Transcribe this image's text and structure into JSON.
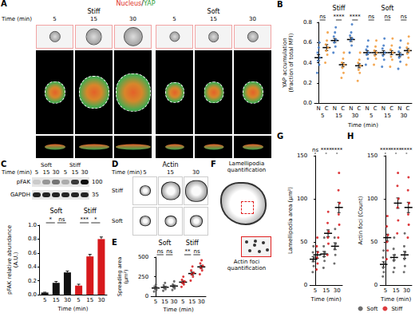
{
  "figure": {
    "A": {
      "title": "A",
      "header": [
        "Nucleus",
        "/",
        "YAP"
      ],
      "time_label": "Time (min)",
      "conditions": [
        {
          "name": "Stiff",
          "times": [
            "5",
            "15",
            "30"
          ]
        },
        {
          "name": "Soft",
          "times": [
            "5",
            "15",
            "30"
          ]
        }
      ]
    },
    "C_blot": {
      "time_label": "Time (min)",
      "conditions": [
        {
          "name": "Soft",
          "times": [
            "5",
            "15",
            "30"
          ]
        },
        {
          "name": "Stiff",
          "times": [
            "5",
            "15",
            "30"
          ]
        }
      ],
      "bands": [
        "pFAK",
        "GAPDH"
      ],
      "markers": [
        "100",
        "35"
      ]
    },
    "D": {
      "title": "D",
      "header": "Actin",
      "time_label": "Time (min)",
      "times": [
        "5",
        "15",
        "30"
      ],
      "rows": [
        "Stiff",
        "Soft"
      ]
    },
    "F": {
      "title": "F",
      "labels": [
        "Lamellipodia quantification",
        "Actin foci quantification"
      ]
    }
  },
  "chart_data": [
    {
      "title": "B",
      "type": "scatter",
      "ylabel": "YAP accumulation (fraction of total MFI)",
      "xlabel": "Time (min)",
      "categories": [
        "N",
        "C",
        "N",
        "C",
        "N",
        "C",
        "N",
        "C",
        "N",
        "C",
        "N",
        "C"
      ],
      "group_labels": [
        "5",
        "15",
        "30",
        "5",
        "15",
        "30"
      ],
      "conditions": [
        "Stiff",
        "Soft"
      ],
      "significance": [
        "ns",
        "****",
        "****",
        "ns",
        "ns",
        "ns"
      ],
      "ylim": [
        0,
        0.8
      ],
      "yticks": [
        {
          "value": 0,
          "label": "0.0"
        },
        0.2,
        0.4,
        0.6,
        0.8
      ],
      "grid": false,
      "series": [
        {
          "colors": [
            "#3b75c4",
            "#f29a38",
            "#3b75c4",
            "#f29a38",
            "#3b75c4",
            "#f29a38",
            "#3b75c4",
            "#f29a38",
            "#3b75c4",
            "#f29a38",
            "#3b75c4",
            "#f29a38"
          ],
          "values": [
            0.45,
            0.55,
            0.62,
            0.38,
            0.63,
            0.37,
            0.5,
            0.5,
            0.5,
            0.5,
            0.48,
            0.52
          ],
          "errors": [
            0.03,
            0.03,
            0.02,
            0.02,
            0.02,
            0.02,
            0.02,
            0.02,
            0.02,
            0.02,
            0.02,
            0.02
          ],
          "points": [
            [
              0.3,
              0.38,
              0.42,
              0.45,
              0.5,
              0.55,
              0.6
            ],
            [
              0.4,
              0.48,
              0.52,
              0.55,
              0.58,
              0.62,
              0.7
            ],
            [
              0.5,
              0.56,
              0.6,
              0.63,
              0.66,
              0.7,
              0.75
            ],
            [
              0.25,
              0.3,
              0.35,
              0.38,
              0.4,
              0.44,
              0.5
            ],
            [
              0.5,
              0.57,
              0.62,
              0.64,
              0.67,
              0.7,
              0.78
            ],
            [
              0.22,
              0.3,
              0.33,
              0.37,
              0.4,
              0.43,
              0.5
            ],
            [
              0.38,
              0.44,
              0.48,
              0.5,
              0.53,
              0.56,
              0.62
            ],
            [
              0.38,
              0.44,
              0.47,
              0.5,
              0.52,
              0.56,
              0.62
            ],
            [
              0.36,
              0.43,
              0.47,
              0.5,
              0.54,
              0.57,
              0.64
            ],
            [
              0.36,
              0.43,
              0.46,
              0.5,
              0.53,
              0.57,
              0.64
            ],
            [
              0.34,
              0.41,
              0.45,
              0.48,
              0.51,
              0.55,
              0.62
            ],
            [
              0.38,
              0.45,
              0.49,
              0.52,
              0.55,
              0.59,
              0.66
            ]
          ]
        }
      ]
    },
    {
      "title": "C",
      "type": "bar",
      "ylabel": "pFAK relative abundance (A.U.)",
      "xlabel": "Time (min)",
      "categories": [
        "5",
        "15",
        "30",
        "5",
        "15",
        "30"
      ],
      "conditions": [
        "Soft",
        "Stiff"
      ],
      "significance": [
        "*",
        "ns",
        "***",
        "*"
      ],
      "ylim": [
        0,
        1
      ],
      "yticks": [
        {
          "value": 0,
          "label": "0.0"
        },
        0.2,
        0.4,
        0.6,
        0.8,
        {
          "value": 1,
          "label": "1.0"
        }
      ],
      "grid": false,
      "series": [
        {
          "colors": [
            "#111111",
            "#111111",
            "#111111",
            "#d7191c",
            "#d7191c",
            "#d7191c"
          ],
          "values": [
            0.03,
            0.17,
            0.32,
            0.13,
            0.55,
            0.8
          ],
          "errors": [
            0.005,
            0.02,
            0.02,
            0.02,
            0.03,
            0.03
          ]
        }
      ]
    },
    {
      "title": "E",
      "type": "scatter",
      "ylabel": "Spreading area (µm²)",
      "xlabel": "Time (min)",
      "categories": [
        "5",
        "15",
        "30",
        "5",
        "15",
        "30"
      ],
      "conditions": [
        "Soft",
        "Stiff"
      ],
      "significance": [
        "ns",
        "ns",
        "**",
        "ns"
      ],
      "ylim": [
        0,
        500
      ],
      "yticks": [
        0,
        250,
        500
      ],
      "grid": false,
      "series": [
        {
          "colors": [
            "#555555",
            "#555555",
            "#555555",
            "#d7191c",
            "#d7191c",
            "#d7191c"
          ],
          "values": [
            105,
            115,
            130,
            180,
            290,
            375
          ],
          "errors": [
            10,
            10,
            12,
            15,
            18,
            20
          ],
          "points": [
            [
              60,
              80,
              95,
              110,
              125,
              150
            ],
            [
              70,
              90,
              105,
              120,
              140,
              170
            ],
            [
              80,
              100,
              115,
              130,
              150,
              190
            ],
            [
              120,
              150,
              170,
              190,
              210,
              250
            ],
            [
              200,
              250,
              280,
              300,
              330,
              380
            ],
            [
              280,
              330,
              360,
              390,
              420,
              460
            ]
          ]
        }
      ]
    },
    {
      "title": "G",
      "type": "scatter",
      "ylabel": "Lamellipodia area (µm²)",
      "xlabel": "Time (min)",
      "categories": [
        "5",
        "15",
        "30"
      ],
      "significance": [
        "ns",
        "****",
        "****"
      ],
      "ylim": [
        0,
        150
      ],
      "yticks": [
        0,
        50,
        100,
        150
      ],
      "grid": false,
      "series": [
        {
          "color": "#555555",
          "values": [
            30,
            36,
            45
          ],
          "errors": [
            3,
            3,
            4
          ],
          "points": [
            [
              15,
              22,
              28,
              32,
              38,
              45
            ],
            [
              20,
              28,
              33,
              38,
              45,
              55
            ],
            [
              25,
              35,
              42,
              48,
              55,
              65
            ]
          ]
        },
        {
          "color": "#d7191c",
          "values": [
            35,
            60,
            90
          ],
          "errors": [
            4,
            4,
            6
          ],
          "points": [
            [
              18,
              25,
              32,
              38,
              45,
              55
            ],
            [
              35,
              48,
              55,
              62,
              72,
              85
            ],
            [
              55,
              70,
              82,
              95,
              110,
              130
            ]
          ]
        }
      ]
    },
    {
      "title": "H",
      "type": "scatter",
      "ylabel": "Actin foci (Count)",
      "xlabel": "Time (min)",
      "categories": [
        "5",
        "15",
        "30"
      ],
      "significance": [
        "****",
        "****",
        "****"
      ],
      "ylim": [
        0,
        150
      ],
      "yticks": [
        0,
        50,
        100,
        150
      ],
      "grid": false,
      "legend": "bottom",
      "series": [
        {
          "name": "Soft",
          "color": "#555555",
          "values": [
            24,
            32,
            35
          ],
          "errors": [
            3,
            3,
            4
          ],
          "points": [
            [
              10,
              15,
              20,
              25,
              32,
              40
            ],
            [
              15,
              20,
              28,
              35,
              42,
              55
            ],
            [
              15,
              22,
              30,
              38,
              45,
              60
            ]
          ]
        },
        {
          "name": "Stiff",
          "color": "#d7191c",
          "values": [
            55,
            95,
            90
          ],
          "errors": [
            4,
            6,
            6
          ],
          "points": [
            [
              30,
              40,
              50,
              58,
              68,
              80
            ],
            [
              60,
              75,
              90,
              100,
              115,
              130
            ],
            [
              55,
              70,
              82,
              95,
              110,
              125
            ]
          ]
        }
      ]
    }
  ]
}
